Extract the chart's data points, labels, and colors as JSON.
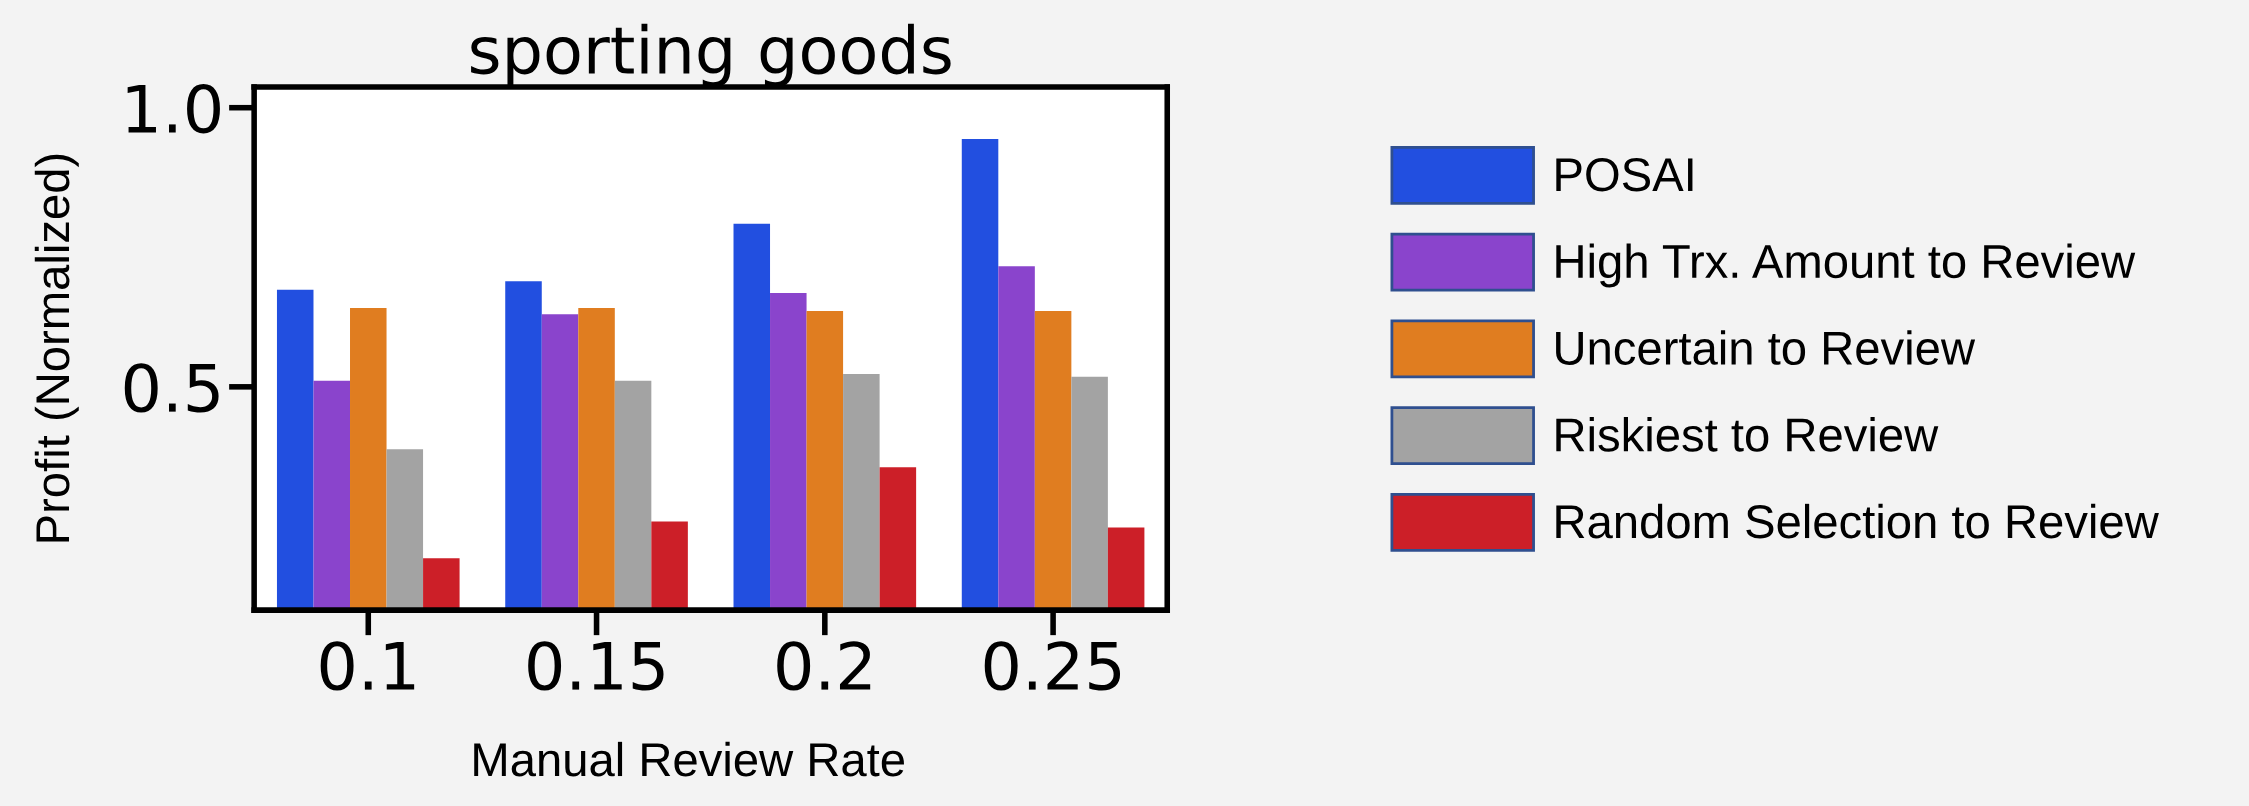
{
  "chart_data": {
    "type": "bar",
    "title": "sporting goods",
    "xlabel": "Manual Review Rate",
    "ylabel": "Profit (Normalized)",
    "categories": [
      "0.1",
      "0.15",
      "0.2",
      "0.25"
    ],
    "series": [
      {
        "name": "POSAI",
        "color": "#224fe0",
        "values": [
          0.674,
          0.689,
          0.792,
          0.944
        ]
      },
      {
        "name": "High Trx. Amount to Review",
        "color": "#8a44cc",
        "values": [
          0.511,
          0.63,
          0.668,
          0.716
        ]
      },
      {
        "name": "Uncertain to Review",
        "color": "#e07d20",
        "values": [
          0.641,
          0.641,
          0.636,
          0.636
        ]
      },
      {
        "name": "Riskiest to Review",
        "color": "#a3a3a3",
        "values": [
          0.388,
          0.511,
          0.523,
          0.518
        ]
      },
      {
        "name": "Random Selection to Review",
        "color": "#cc1f28",
        "values": [
          0.193,
          0.259,
          0.356,
          0.248
        ]
      }
    ],
    "ylim": [
      0.1,
      1.037
    ],
    "yticks": [
      0.5,
      {
        "value": 1,
        "label": "1.0"
      }
    ],
    "grid": false,
    "legend": "right"
  }
}
